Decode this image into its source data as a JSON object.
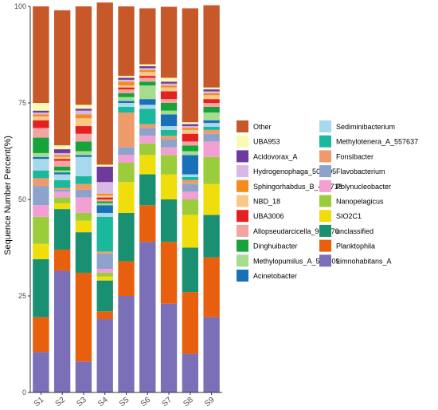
{
  "chart_data": {
    "type": "bar",
    "stacked": true,
    "ylabel": "Sequence Number Percent(%)",
    "xlabel": "",
    "ylim": [
      0,
      100
    ],
    "yticks": [
      "0",
      "25",
      "50",
      "75",
      "100"
    ],
    "grid": false,
    "legend_position": "right",
    "categories": [
      "S1",
      "S2",
      "S3",
      "S4",
      "S5",
      "S6",
      "S7",
      "S8",
      "S9"
    ],
    "series": [
      {
        "name": "Limnohabitans_A",
        "color": "#7b6fb8",
        "values": [
          10.5,
          31.5,
          8.0,
          19.0,
          25.0,
          39.0,
          23.0,
          10.0,
          19.5
        ]
      },
      {
        "name": "Planktophila",
        "color": "#e8600e",
        "values": [
          9.0,
          5.5,
          23.0,
          2.0,
          9.0,
          9.5,
          16.0,
          16.0,
          15.5
        ]
      },
      {
        "name": "unclassified",
        "color": "#1a9072",
        "values": [
          15.0,
          10.5,
          10.5,
          8.0,
          12.5,
          8.0,
          11.0,
          11.5,
          11.0
        ]
      },
      {
        "name": "SIO2C1",
        "color": "#f0dd0c",
        "values": [
          4.0,
          1.5,
          3.0,
          1.0,
          8.0,
          5.0,
          6.5,
          8.5,
          8.0
        ]
      },
      {
        "name": "Nanopelagicus",
        "color": "#9bcc3c",
        "values": [
          7.0,
          1.5,
          2.0,
          1.0,
          5.0,
          3.0,
          5.0,
          4.0,
          7.0
        ]
      },
      {
        "name": "Polynucleobacter",
        "color": "#f2a0d4",
        "values": [
          3.0,
          1.5,
          4.0,
          1.0,
          2.0,
          2.0,
          2.0,
          2.0,
          4.0
        ]
      },
      {
        "name": "Flavobacterium",
        "color": "#8ea3cc",
        "values": [
          5.0,
          0.5,
          2.0,
          4.0,
          2.0,
          2.0,
          2.0,
          2.0,
          2.0
        ]
      },
      {
        "name": "Fonsibacter",
        "color": "#ef9a6b",
        "values": [
          2.0,
          0.5,
          1.5,
          0.5,
          9.0,
          1.0,
          1.0,
          1.0,
          1.0
        ]
      },
      {
        "name": "Methylotenera_A_557637",
        "color": "#1ab89c",
        "values": [
          2.0,
          2.0,
          2.0,
          9.0,
          1.5,
          4.0,
          1.5,
          0.8,
          0.8
        ]
      },
      {
        "name": "Sediminibacterium",
        "color": "#a8d8ec",
        "values": [
          3.0,
          1.5,
          5.0,
          1.0,
          1.0,
          1.0,
          1.0,
          0.7,
          1.0
        ]
      },
      {
        "name": "Acinetobacter",
        "color": "#1a70b8",
        "values": [
          0.5,
          0.5,
          0.5,
          2.0,
          0.5,
          1.5,
          3.0,
          5.0,
          0.7
        ]
      },
      {
        "name": "Methylopumilus_A_556409",
        "color": "#a6dc8e",
        "values": [
          1.0,
          0.5,
          1.0,
          0.5,
          1.0,
          3.5,
          1.0,
          1.0,
          2.0
        ]
      },
      {
        "name": "Dinghuibacter",
        "color": "#17a33a",
        "values": [
          4.0,
          1.0,
          2.5,
          0.5,
          1.0,
          1.0,
          2.0,
          1.5,
          1.5
        ]
      },
      {
        "name": "Allopseudarcicella_904070",
        "color": "#f4a3a3",
        "values": [
          2.5,
          1.5,
          2.0,
          0.5,
          1.0,
          1.0,
          1.0,
          1.0,
          1.0
        ]
      },
      {
        "name": "UBA3006",
        "color": "#e32121",
        "values": [
          2.0,
          0.5,
          2.0,
          0.5,
          0.5,
          0.5,
          2.0,
          2.0,
          1.0
        ]
      },
      {
        "name": "NBD_18",
        "color": "#f8c888",
        "values": [
          1.0,
          0.5,
          2.0,
          0.5,
          0.5,
          1.0,
          1.0,
          1.0,
          1.0
        ]
      },
      {
        "name": "Sphingorhabdus_B_483718",
        "color": "#f28c1d",
        "values": [
          0.5,
          0.5,
          1.0,
          0.5,
          1.0,
          0.5,
          0.5,
          0.5,
          0.5
        ]
      },
      {
        "name": "Hydrogenophaga_500305",
        "color": "#d9b8e2",
        "values": [
          0.5,
          0.5,
          1.0,
          3.0,
          0.5,
          0.5,
          0.5,
          0.5,
          0.5
        ]
      },
      {
        "name": "Acidovorax_A",
        "color": "#6e3a9e",
        "values": [
          0.5,
          1.0,
          0.5,
          4.0,
          0.5,
          0.5,
          0.5,
          0.5,
          0.5
        ]
      },
      {
        "name": "UBA953",
        "color": "#fafab2",
        "values": [
          2.0,
          1.0,
          1.0,
          0.5,
          0.5,
          0.5,
          1.0,
          0.5,
          0.5
        ]
      },
      {
        "name": "Other",
        "color": "#c6582a",
        "values": [
          25.0,
          35.0,
          25.5,
          42.0,
          18.0,
          14.5,
          18.4,
          29.5,
          21.3
        ]
      }
    ],
    "legend": {
      "left": [
        "Other",
        "UBA953",
        "Acidovorax_A",
        "Hydrogenophaga_500305",
        "Sphingorhabdus_B_483718",
        "NBD_18",
        "UBA3006",
        "Allopseudarcicella_904070",
        "Dinghuibacter",
        "Methylopumilus_A_556409",
        "Acinetobacter"
      ],
      "right": [
        "Sediminibacterium",
        "Methylotenera_A_557637",
        "Fonsibacter",
        "Flavobacterium",
        "Polynucleobacter",
        "Nanopelagicus",
        "SIO2C1",
        "unclassified",
        "Planktophila",
        "Limnohabitans_A"
      ]
    }
  }
}
